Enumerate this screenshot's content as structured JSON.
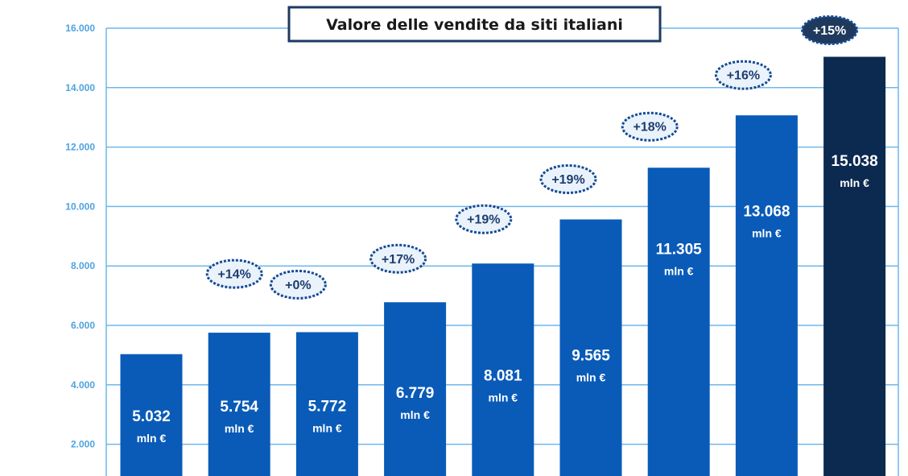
{
  "chart_data": {
    "type": "bar",
    "title": "Valore delle vendite da siti italiani",
    "ylim": [
      0,
      16000
    ],
    "y_ticks": [
      "16.000",
      "14.000",
      "12.000",
      "10.000",
      "8.000",
      "6.000",
      "4.000",
      "2.000"
    ],
    "y_tick_values": [
      16000,
      14000,
      12000,
      10000,
      8000,
      6000,
      4000,
      2000
    ],
    "values": [
      5032,
      5754,
      5772,
      6779,
      8081,
      9565,
      11305,
      13068,
      15038
    ],
    "value_labels": [
      "5.032",
      "5.754",
      "5.772",
      "6.779",
      "8.081",
      "9.565",
      "11.305",
      "13.068",
      "15.038"
    ],
    "unit_label": "mln €",
    "growth_labels": [
      "+14%",
      "+0%",
      "+17%",
      "+19%",
      "+19%",
      "+18%",
      "+16%",
      "+15%"
    ],
    "grid": true,
    "colors": {
      "bar": "#0a5bb8",
      "bar_highlight": "#0c2a50",
      "grid": "#6fb7ec",
      "tick_text": "#4da3e0",
      "bubble_fill": "#eaf3fb",
      "bubble_stroke": "#154a96",
      "bubble_text": "#1d3d70",
      "bubble_highlight_fill": "#1f3a5c",
      "bubble_highlight_text": "#ffffff"
    }
  }
}
